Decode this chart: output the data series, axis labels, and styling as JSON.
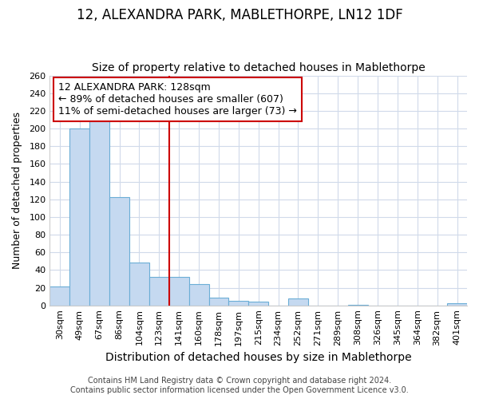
{
  "title": "12, ALEXANDRA PARK, MABLETHORPE, LN12 1DF",
  "subtitle": "Size of property relative to detached houses in Mablethorpe",
  "xlabel": "Distribution of detached houses by size in Mablethorpe",
  "ylabel": "Number of detached properties",
  "bin_labels": [
    "30sqm",
    "49sqm",
    "67sqm",
    "86sqm",
    "104sqm",
    "123sqm",
    "141sqm",
    "160sqm",
    "178sqm",
    "197sqm",
    "215sqm",
    "234sqm",
    "252sqm",
    "271sqm",
    "289sqm",
    "308sqm",
    "326sqm",
    "345sqm",
    "364sqm",
    "382sqm",
    "401sqm"
  ],
  "bar_values": [
    21,
    200,
    213,
    122,
    48,
    32,
    32,
    24,
    9,
    5,
    4,
    0,
    8,
    0,
    0,
    1,
    0,
    0,
    0,
    0,
    2
  ],
  "bar_color": "#c5d9f0",
  "bar_edge_color": "#6baed6",
  "vline_x": 5.5,
  "vline_color": "#cc0000",
  "annotation_title": "12 ALEXANDRA PARK: 128sqm",
  "annotation_line1": "← 89% of detached houses are smaller (607)",
  "annotation_line2": "11% of semi-detached houses are larger (73) →",
  "annotation_box_color": "#cc0000",
  "ylim": [
    0,
    260
  ],
  "yticks": [
    0,
    20,
    40,
    60,
    80,
    100,
    120,
    140,
    160,
    180,
    200,
    220,
    240,
    260
  ],
  "footer1": "Contains HM Land Registry data © Crown copyright and database right 2024.",
  "footer2": "Contains public sector information licensed under the Open Government Licence v3.0.",
  "title_fontsize": 12,
  "subtitle_fontsize": 10,
  "xlabel_fontsize": 10,
  "ylabel_fontsize": 9,
  "tick_fontsize": 8,
  "annotation_fontsize": 9,
  "footer_fontsize": 7,
  "background_color": "#ffffff",
  "grid_color": "#d0daea"
}
